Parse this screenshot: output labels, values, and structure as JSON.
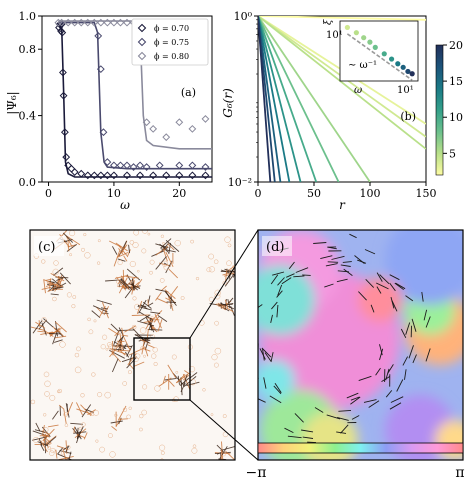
{
  "chart_data": [
    {
      "panel_label": "(a)",
      "type": "line",
      "xlabel": "ω",
      "ylabel": "|Ψ₆|",
      "xlim": [
        -1,
        25
      ],
      "ylim": [
        0.0,
        1.0
      ],
      "xticks": [
        "0",
        "10",
        "20"
      ],
      "xtick_values": [
        0,
        10,
        20
      ],
      "yticks": [
        "0.0",
        "0.4",
        "0.8",
        "1.0"
      ],
      "ytick_values": [
        0.0,
        0.4,
        0.8,
        1.0
      ],
      "legend_position": "top-right",
      "series": [
        {
          "name": "ϕ = 0.70",
          "color": "#1a1a3a",
          "line": {
            "x": [
              1.5,
              2.0,
              2.3,
              2.6,
              3.0,
              4,
              6,
              10,
              15,
              20,
              25
            ],
            "y": [
              0.95,
              0.95,
              0.55,
              0.12,
              0.05,
              0.03,
              0.03,
              0.03,
              0.03,
              0.03,
              0.03
            ]
          },
          "points": {
            "x": [
              1.6,
              1.7,
              1.8,
              1.9,
              2.0,
              2.1,
              2.2,
              2.3,
              2.5,
              2.7,
              3.0,
              3.5,
              4,
              5,
              6,
              7,
              8,
              9,
              10,
              12,
              14,
              16,
              18,
              20,
              22,
              24
            ],
            "y": [
              0.93,
              0.95,
              0.95,
              0.91,
              0.95,
              0.9,
              0.66,
              0.52,
              0.3,
              0.15,
              0.1,
              0.08,
              0.06,
              0.05,
              0.04,
              0.04,
              0.04,
              0.04,
              0.04,
              0.04,
              0.04,
              0.04,
              0.04,
              0.04,
              0.04,
              0.04
            ]
          }
        },
        {
          "name": "ϕ = 0.75",
          "color": "#4a4a6e",
          "line": {
            "x": [
              1.5,
              5,
              7,
              7.5,
              8,
              8.5,
              9,
              12,
              18,
              25
            ],
            "y": [
              0.96,
              0.96,
              0.96,
              0.9,
              0.3,
              0.12,
              0.09,
              0.08,
              0.08,
              0.08
            ]
          },
          "points": {
            "x": [
              7.6,
              8.0,
              8.4,
              9,
              10,
              11,
              12,
              13,
              14,
              15,
              17,
              20,
              22,
              24
            ],
            "y": [
              0.88,
              0.68,
              0.3,
              0.12,
              0.1,
              0.1,
              0.1,
              0.09,
              0.1,
              0.09,
              0.1,
              0.1,
              0.1,
              0.09
            ]
          }
        },
        {
          "name": "ϕ = 0.80",
          "color": "#8a8a9c",
          "line": {
            "x": [
              1.5,
              10,
              13.5,
              14,
              14.5,
              15,
              16,
              20,
              25
            ],
            "y": [
              0.97,
              0.97,
              0.97,
              0.9,
              0.4,
              0.25,
              0.22,
              0.2,
              0.2
            ]
          },
          "points": {
            "x": [
              1.5,
              2,
              3,
              4,
              5,
              6,
              7,
              8,
              9,
              10,
              11,
              12,
              13,
              14,
              15,
              16,
              18,
              20,
              22,
              24
            ],
            "y": [
              0.96,
              0.96,
              0.96,
              0.96,
              0.96,
              0.96,
              0.96,
              0.96,
              0.96,
              0.96,
              0.96,
              0.96,
              0.96,
              0.93,
              0.36,
              0.32,
              0.27,
              0.36,
              0.32,
              0.38
            ]
          }
        }
      ]
    },
    {
      "panel_label": "(b)",
      "type": "line",
      "xlabel": "r",
      "ylabel": "G₆(r)",
      "xlim": [
        0,
        150
      ],
      "ylim_log": [
        0.01,
        1
      ],
      "y_scale": "log",
      "xticks": [
        "0",
        "50",
        "100",
        "150"
      ],
      "xtick_values": [
        0,
        50,
        100,
        150
      ],
      "yticks": [
        "10⁰",
        "10⁻²"
      ],
      "ytick_values": [
        1,
        0.01
      ],
      "colorbar": {
        "min": 2,
        "max": 20,
        "ticks": [
          "5",
          "10",
          "15",
          "20"
        ],
        "tick_values": [
          5,
          10,
          15,
          20
        ],
        "colormap": [
          "#fdfca3",
          "#b9e08a",
          "#6cc08d",
          "#34a08a",
          "#1b7a86",
          "#1c537a",
          "#22305a"
        ]
      },
      "series_by_omega": [
        {
          "omega": 2,
          "r_end": 150,
          "g_end": 0.9
        },
        {
          "omega": 3,
          "r_end": 150,
          "g_end": 0.05
        },
        {
          "omega": 4,
          "r_end": 150,
          "g_end": 0.035
        },
        {
          "omega": 5,
          "r_end": 150,
          "g_end": 0.025
        },
        {
          "omega": 6,
          "r_end": 100,
          "g_end": 0.01
        },
        {
          "omega": 8,
          "r_end": 72,
          "g_end": 0.01
        },
        {
          "omega": 10,
          "r_end": 52,
          "g_end": 0.01
        },
        {
          "omega": 12,
          "r_end": 38,
          "g_end": 0.01
        },
        {
          "omega": 14,
          "r_end": 28,
          "g_end": 0.01
        },
        {
          "omega": 16,
          "r_end": 20,
          "g_end": 0.01
        },
        {
          "omega": 18,
          "r_end": 15,
          "g_end": 0.01
        },
        {
          "omega": 20,
          "r_end": 11,
          "g_end": 0.01
        }
      ],
      "inset": {
        "type": "scatter",
        "xlabel": "ω",
        "ylabel": "ξ",
        "y_tick_label": "10¹",
        "x_tick_label": "10¹",
        "annotation": "∼ ω⁻¹",
        "points": [
          {
            "omega": 4,
            "xi": 60
          },
          {
            "omega": 5,
            "xi": 50
          },
          {
            "omega": 6,
            "xi": 42
          },
          {
            "omega": 7,
            "xi": 36
          },
          {
            "omega": 8,
            "xi": 30
          },
          {
            "omega": 10,
            "xi": 24
          },
          {
            "omega": 12,
            "xi": 20
          },
          {
            "omega": 14,
            "xi": 17
          },
          {
            "omega": 16,
            "xi": 15
          },
          {
            "omega": 18,
            "xi": 13
          },
          {
            "omega": 20,
            "xi": 12
          }
        ]
      }
    }
  ],
  "panels": {
    "c": {
      "label": "(c)"
    },
    "d": {
      "label": "(d)"
    }
  },
  "phase_colorbar": {
    "left_label": "−π",
    "right_label": "π",
    "colors": [
      "#ff8a8a",
      "#ffd27a",
      "#f2f27a",
      "#8ef08e",
      "#7ef0f0",
      "#8e9cf4",
      "#d89af2",
      "#ff9ad8",
      "#ff8a8a"
    ]
  }
}
